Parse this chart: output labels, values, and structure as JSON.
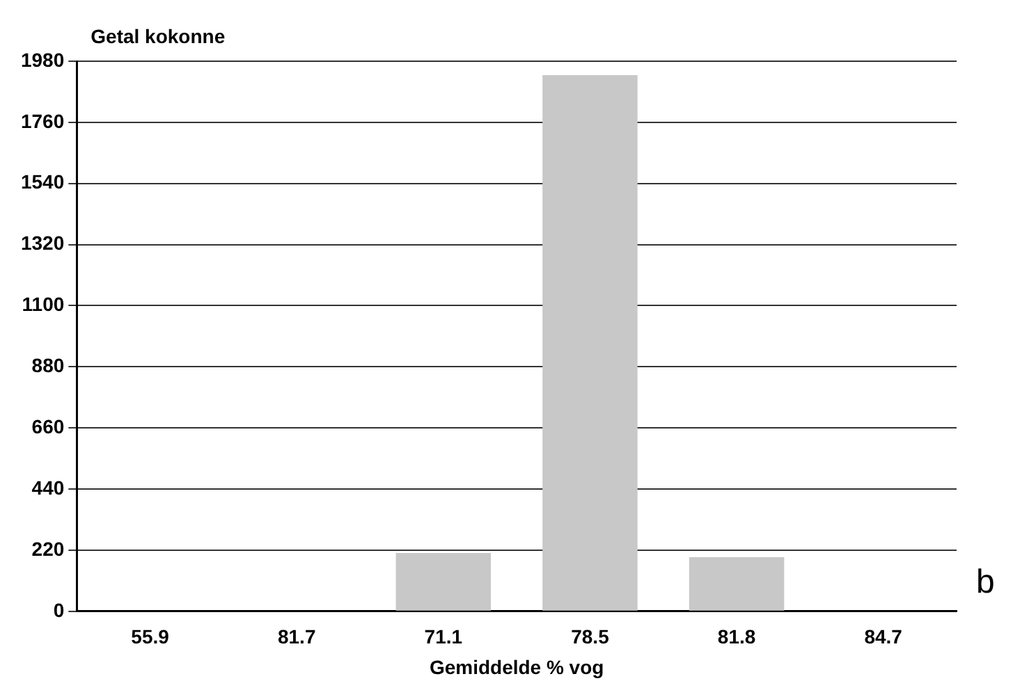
{
  "chart_data": {
    "type": "bar",
    "ylabel": "Getal kokonne",
    "xlabel": "Gemiddelde % vog",
    "categories": [
      "55.9",
      "81.7",
      "71.1",
      "78.5",
      "81.8",
      "84.7"
    ],
    "values": [
      0,
      0,
      210,
      1930,
      195,
      0
    ],
    "color": "#c8c8c8",
    "ylim": [
      0,
      1980
    ],
    "yticks": [
      0,
      220,
      440,
      660,
      880,
      1100,
      1320,
      1540,
      1760,
      1980
    ],
    "grid": "y",
    "legend": false,
    "annotations": [
      "b"
    ]
  }
}
